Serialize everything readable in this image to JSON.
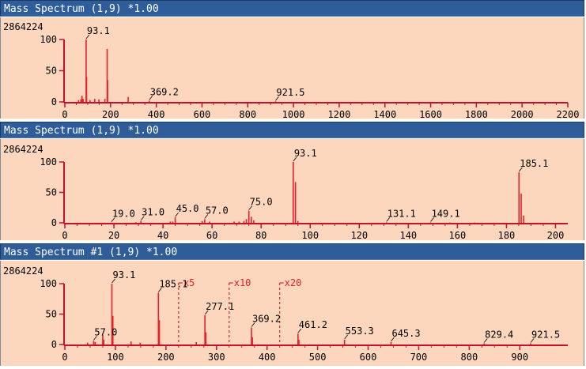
{
  "colors": {
    "title_bg": "#2f5d99",
    "plot_bg": "#fcd7bd",
    "spectrum": "#e8202a",
    "axis": "#c8102e",
    "text": "#000000"
  },
  "panels": [
    {
      "title": "Mass Spectrum (1,9) *1.00"
    },
    {
      "title": "Mass Spectrum (1,9) *1.00"
    },
    {
      "title": "Mass Spectrum #1 (1,9) *1.00"
    }
  ],
  "chart_data": [
    {
      "type": "line",
      "title": "Mass Spectrum (1,9) *1.00",
      "intensity_max_label": "2864224",
      "xlim": [
        0,
        2200
      ],
      "ylim": [
        0,
        100
      ],
      "x_ticks": [
        0,
        200,
        400,
        600,
        800,
        1000,
        1200,
        1400,
        1600,
        1800,
        2000,
        2200
      ],
      "y_ticks": [
        0,
        50,
        100
      ],
      "peaks": [
        {
          "x": 60,
          "y": 3
        },
        {
          "x": 70,
          "y": 4
        },
        {
          "x": 75,
          "y": 10
        },
        {
          "x": 80,
          "y": 5
        },
        {
          "x": 93.1,
          "y": 100
        },
        {
          "x": 95,
          "y": 40
        },
        {
          "x": 110,
          "y": 3
        },
        {
          "x": 131,
          "y": 5
        },
        {
          "x": 149,
          "y": 4
        },
        {
          "x": 175,
          "y": 5
        },
        {
          "x": 185.1,
          "y": 85
        },
        {
          "x": 187,
          "y": 35
        },
        {
          "x": 277,
          "y": 8
        },
        {
          "x": 369.2,
          "y": 2
        },
        {
          "x": 921.5,
          "y": 1
        }
      ],
      "labels": [
        {
          "x": 93.1,
          "y": 100,
          "text": "93.1"
        },
        {
          "x": 369.2,
          "y": 2,
          "text": "369.2"
        },
        {
          "x": 921.5,
          "y": 1,
          "text": "921.5"
        }
      ]
    },
    {
      "type": "line",
      "title": "Mass Spectrum (1,9) *1.00",
      "intensity_max_label": "2864224",
      "xlim": [
        0,
        205
      ],
      "ylim": [
        0,
        100
      ],
      "x_ticks": [
        0,
        20,
        40,
        60,
        80,
        100,
        120,
        140,
        160,
        180,
        200
      ],
      "y_ticks": [
        0,
        50,
        100
      ],
      "peaks": [
        {
          "x": 19.0,
          "y": 0.5
        },
        {
          "x": 29,
          "y": 1
        },
        {
          "x": 31.0,
          "y": 3
        },
        {
          "x": 43,
          "y": 2
        },
        {
          "x": 44,
          "y": 2
        },
        {
          "x": 45.0,
          "y": 9
        },
        {
          "x": 56,
          "y": 3
        },
        {
          "x": 57.0,
          "y": 6
        },
        {
          "x": 59,
          "y": 2
        },
        {
          "x": 69,
          "y": 2
        },
        {
          "x": 71,
          "y": 2
        },
        {
          "x": 73,
          "y": 3
        },
        {
          "x": 74,
          "y": 6
        },
        {
          "x": 75.0,
          "y": 20
        },
        {
          "x": 76,
          "y": 10
        },
        {
          "x": 77,
          "y": 4
        },
        {
          "x": 93.1,
          "y": 100
        },
        {
          "x": 94,
          "y": 67
        },
        {
          "x": 95,
          "y": 3
        },
        {
          "x": 131.1,
          "y": 0.8
        },
        {
          "x": 149.1,
          "y": 0.8
        },
        {
          "x": 157,
          "y": 0.5
        },
        {
          "x": 167,
          "y": 0.5
        },
        {
          "x": 185.1,
          "y": 83
        },
        {
          "x": 186,
          "y": 48
        },
        {
          "x": 187,
          "y": 12
        }
      ],
      "labels": [
        {
          "x": 19.0,
          "y": 0.5,
          "text": "19.0"
        },
        {
          "x": 31.0,
          "y": 3,
          "text": "31.0"
        },
        {
          "x": 45.0,
          "y": 9,
          "text": "45.0"
        },
        {
          "x": 57.0,
          "y": 6,
          "text": "57.0"
        },
        {
          "x": 75.0,
          "y": 20,
          "text": "75.0"
        },
        {
          "x": 93.1,
          "y": 100,
          "text": "93.1"
        },
        {
          "x": 131.1,
          "y": 0.8,
          "text": "131.1"
        },
        {
          "x": 149.1,
          "y": 0.8,
          "text": "149.1"
        },
        {
          "x": 185.1,
          "y": 83,
          "text": "185.1"
        }
      ]
    },
    {
      "type": "line",
      "title": "Mass Spectrum #1 (1,9) *1.00",
      "intensity_max_label": "2864224",
      "xlim": [
        0,
        995
      ],
      "ylim": [
        0,
        100
      ],
      "x_ticks": [
        0,
        100,
        200,
        300,
        400,
        500,
        600,
        700,
        800,
        900
      ],
      "y_ticks": [
        0,
        50,
        100
      ],
      "magnification_markers": [
        {
          "x": 225,
          "text": "x5"
        },
        {
          "x": 325,
          "text": "x10"
        },
        {
          "x": 425,
          "text": "x20"
        }
      ],
      "peaks": [
        {
          "x": 45,
          "y": 3
        },
        {
          "x": 57.0,
          "y": 6
        },
        {
          "x": 60,
          "y": 4
        },
        {
          "x": 75,
          "y": 16
        },
        {
          "x": 77,
          "y": 8
        },
        {
          "x": 93.1,
          "y": 100
        },
        {
          "x": 95,
          "y": 47
        },
        {
          "x": 131,
          "y": 5
        },
        {
          "x": 149,
          "y": 3
        },
        {
          "x": 185.1,
          "y": 85
        },
        {
          "x": 187,
          "y": 40
        },
        {
          "x": 260,
          "y": 4
        },
        {
          "x": 277.1,
          "y": 48
        },
        {
          "x": 279,
          "y": 20
        },
        {
          "x": 369.2,
          "y": 28
        },
        {
          "x": 371,
          "y": 12
        },
        {
          "x": 461.2,
          "y": 18
        },
        {
          "x": 463,
          "y": 8
        },
        {
          "x": 553.3,
          "y": 8
        },
        {
          "x": 645.3,
          "y": 4
        },
        {
          "x": 829.4,
          "y": 2
        },
        {
          "x": 921.5,
          "y": 2
        }
      ],
      "labels": [
        {
          "x": 57.0,
          "y": 6,
          "text": "57.0"
        },
        {
          "x": 93.1,
          "y": 100,
          "text": "93.1"
        },
        {
          "x": 185.1,
          "y": 85,
          "text": "185.1"
        },
        {
          "x": 277.1,
          "y": 48,
          "text": "277.1"
        },
        {
          "x": 369.2,
          "y": 28,
          "text": "369.2"
        },
        {
          "x": 461.2,
          "y": 18,
          "text": "461.2"
        },
        {
          "x": 553.3,
          "y": 8,
          "text": "553.3"
        },
        {
          "x": 645.3,
          "y": 4,
          "text": "645.3"
        },
        {
          "x": 829.4,
          "y": 2,
          "text": "829.4"
        },
        {
          "x": 921.5,
          "y": 2,
          "text": "921.5"
        }
      ]
    }
  ]
}
